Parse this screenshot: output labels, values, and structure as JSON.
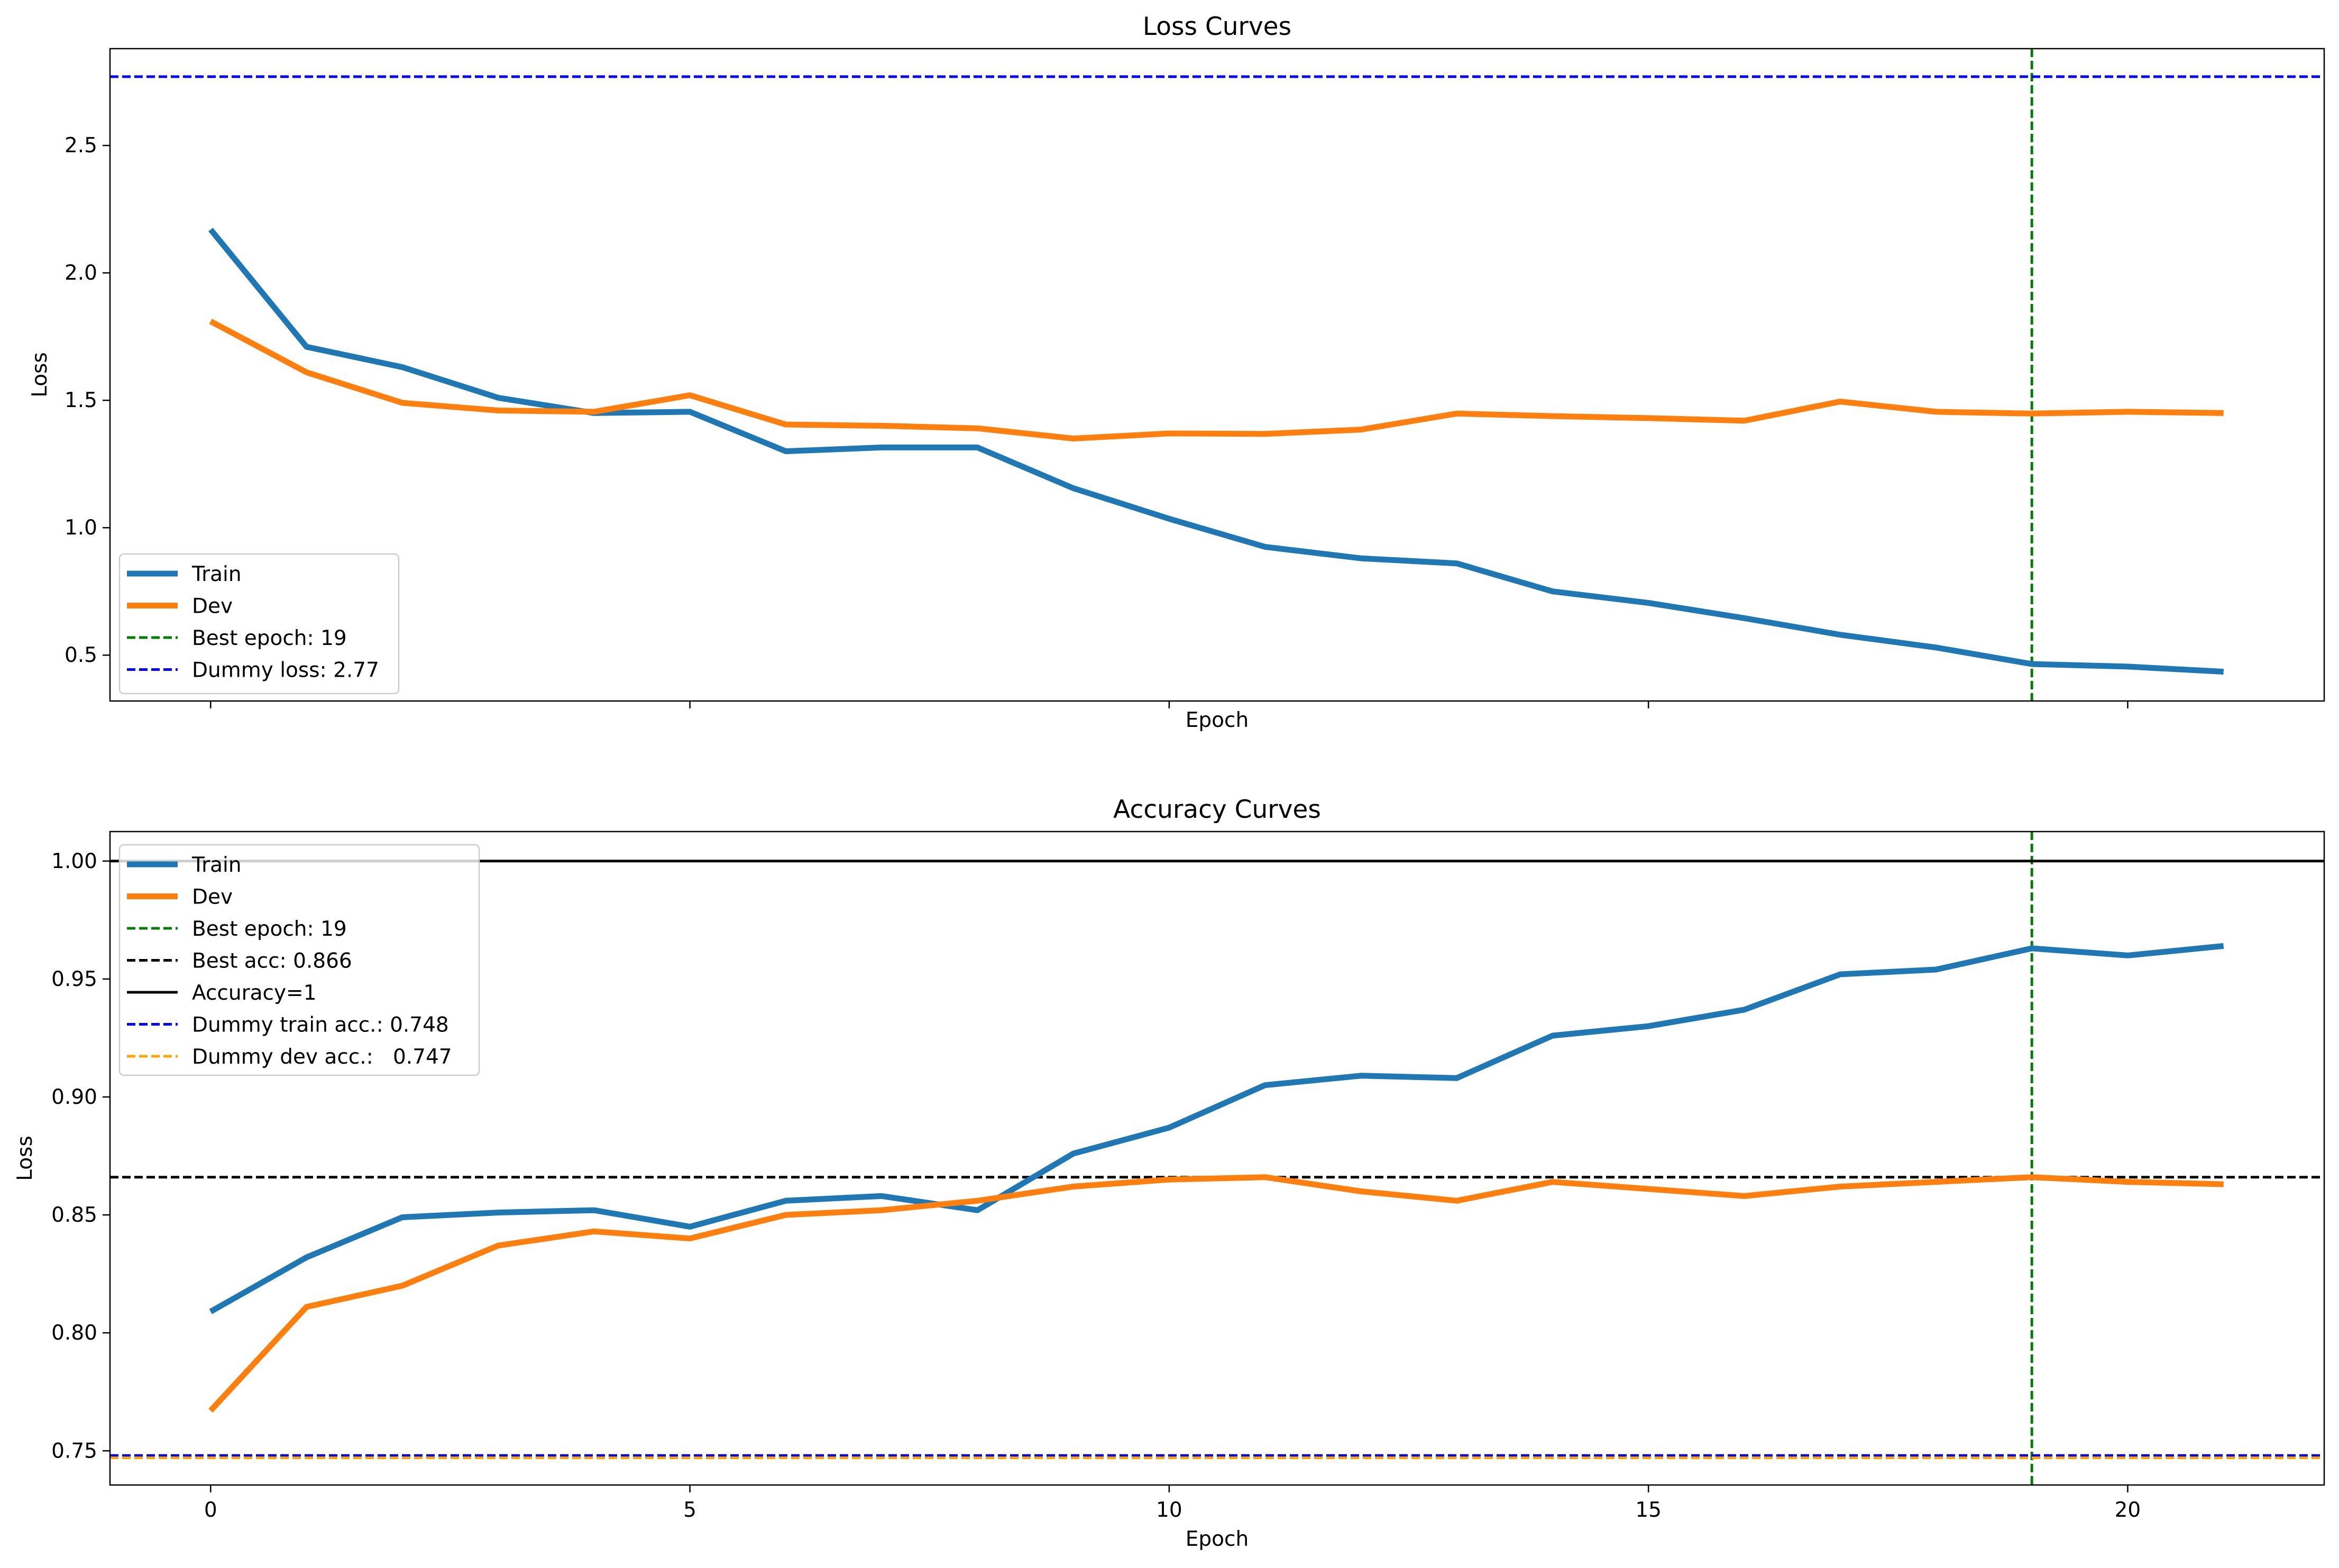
{
  "chart_data": [
    {
      "type": "line",
      "title": "Loss Curves",
      "xlabel": "Epoch",
      "ylabel": "Loss",
      "xlim": [
        -1.05,
        22.05
      ],
      "ylim": [
        0.32,
        2.88
      ],
      "x_ticks": [
        0,
        5,
        10,
        15,
        20
      ],
      "x_tick_labels_visible": false,
      "y_ticks": [
        0.5,
        1.0,
        1.5,
        2.0,
        2.5
      ],
      "y_tick_labels": [
        "0.5",
        "1.0",
        "1.5",
        "2.0",
        "2.5"
      ],
      "grid": false,
      "legend_position": "lower-left",
      "x": [
        0,
        1,
        2,
        3,
        4,
        5,
        6,
        7,
        8,
        9,
        10,
        11,
        12,
        13,
        14,
        15,
        16,
        17,
        18,
        19,
        20,
        21
      ],
      "series": [
        {
          "name": "Train",
          "color": "#1f77b4",
          "values": [
            2.17,
            1.71,
            1.63,
            1.51,
            1.45,
            1.455,
            1.3,
            1.315,
            1.315,
            1.155,
            1.035,
            0.925,
            0.88,
            0.86,
            0.75,
            0.705,
            0.645,
            0.58,
            0.53,
            0.465,
            0.455,
            0.435
          ]
        },
        {
          "name": "Dev",
          "color": "#ff7f0e",
          "values": [
            1.81,
            1.61,
            1.49,
            1.46,
            1.455,
            1.52,
            1.405,
            1.4,
            1.39,
            1.35,
            1.37,
            1.368,
            1.385,
            1.448,
            1.438,
            1.43,
            1.42,
            1.495,
            1.455,
            1.448,
            1.455,
            1.45
          ]
        }
      ],
      "reference_lines": [
        {
          "orientation": "vertical",
          "value": 19,
          "name": "Best epoch: 19",
          "color": "#008000",
          "dash": "dashed"
        },
        {
          "orientation": "horizontal",
          "value": 2.77,
          "name": "Dummy loss: 2.77",
          "color": "#0000ff",
          "dash": "dashed"
        }
      ]
    },
    {
      "type": "line",
      "title": "Accuracy Curves",
      "xlabel": "Epoch",
      "ylabel": "Loss",
      "xlim": [
        -1.05,
        22.05
      ],
      "ylim": [
        0.7355,
        1.0125
      ],
      "x_ticks": [
        0,
        5,
        10,
        15,
        20
      ],
      "x_tick_labels": [
        "0",
        "5",
        "10",
        "15",
        "20"
      ],
      "y_ticks": [
        0.75,
        0.8,
        0.85,
        0.9,
        0.95,
        1.0
      ],
      "y_tick_labels": [
        "0.75",
        "0.80",
        "0.85",
        "0.90",
        "0.95",
        "1.00"
      ],
      "grid": false,
      "legend_position": "upper-left",
      "x": [
        0,
        1,
        2,
        3,
        4,
        5,
        6,
        7,
        8,
        9,
        10,
        11,
        12,
        13,
        14,
        15,
        16,
        17,
        18,
        19,
        20,
        21
      ],
      "series": [
        {
          "name": "Train",
          "color": "#1f77b4",
          "values": [
            0.809,
            0.832,
            0.849,
            0.851,
            0.852,
            0.845,
            0.856,
            0.858,
            0.852,
            0.876,
            0.887,
            0.905,
            0.909,
            0.908,
            0.926,
            0.93,
            0.937,
            0.952,
            0.954,
            0.963,
            0.96,
            0.964
          ]
        },
        {
          "name": "Dev",
          "color": "#ff7f0e",
          "values": [
            0.767,
            0.811,
            0.82,
            0.837,
            0.843,
            0.84,
            0.85,
            0.852,
            0.856,
            0.862,
            0.865,
            0.866,
            0.86,
            0.856,
            0.864,
            0.861,
            0.858,
            0.862,
            0.864,
            0.866,
            0.864,
            0.863
          ]
        }
      ],
      "reference_lines": [
        {
          "orientation": "vertical",
          "value": 19,
          "name": "Best epoch: 19",
          "color": "#008000",
          "dash": "dashed"
        },
        {
          "orientation": "horizontal",
          "value": 0.866,
          "name": "Best acc: 0.866",
          "color": "#000000",
          "dash": "dashed"
        },
        {
          "orientation": "horizontal",
          "value": 1.0,
          "name": "Accuracy=1",
          "color": "#000000",
          "dash": "solid"
        },
        {
          "orientation": "horizontal",
          "value": 0.748,
          "name": "Dummy train acc.: 0.748",
          "color": "#0000ff",
          "dash": "dashed"
        },
        {
          "orientation": "horizontal",
          "value": 0.747,
          "name": "Dummy dev acc.:   0.747",
          "color": "#ffa500",
          "dash": "dashed"
        }
      ]
    }
  ]
}
